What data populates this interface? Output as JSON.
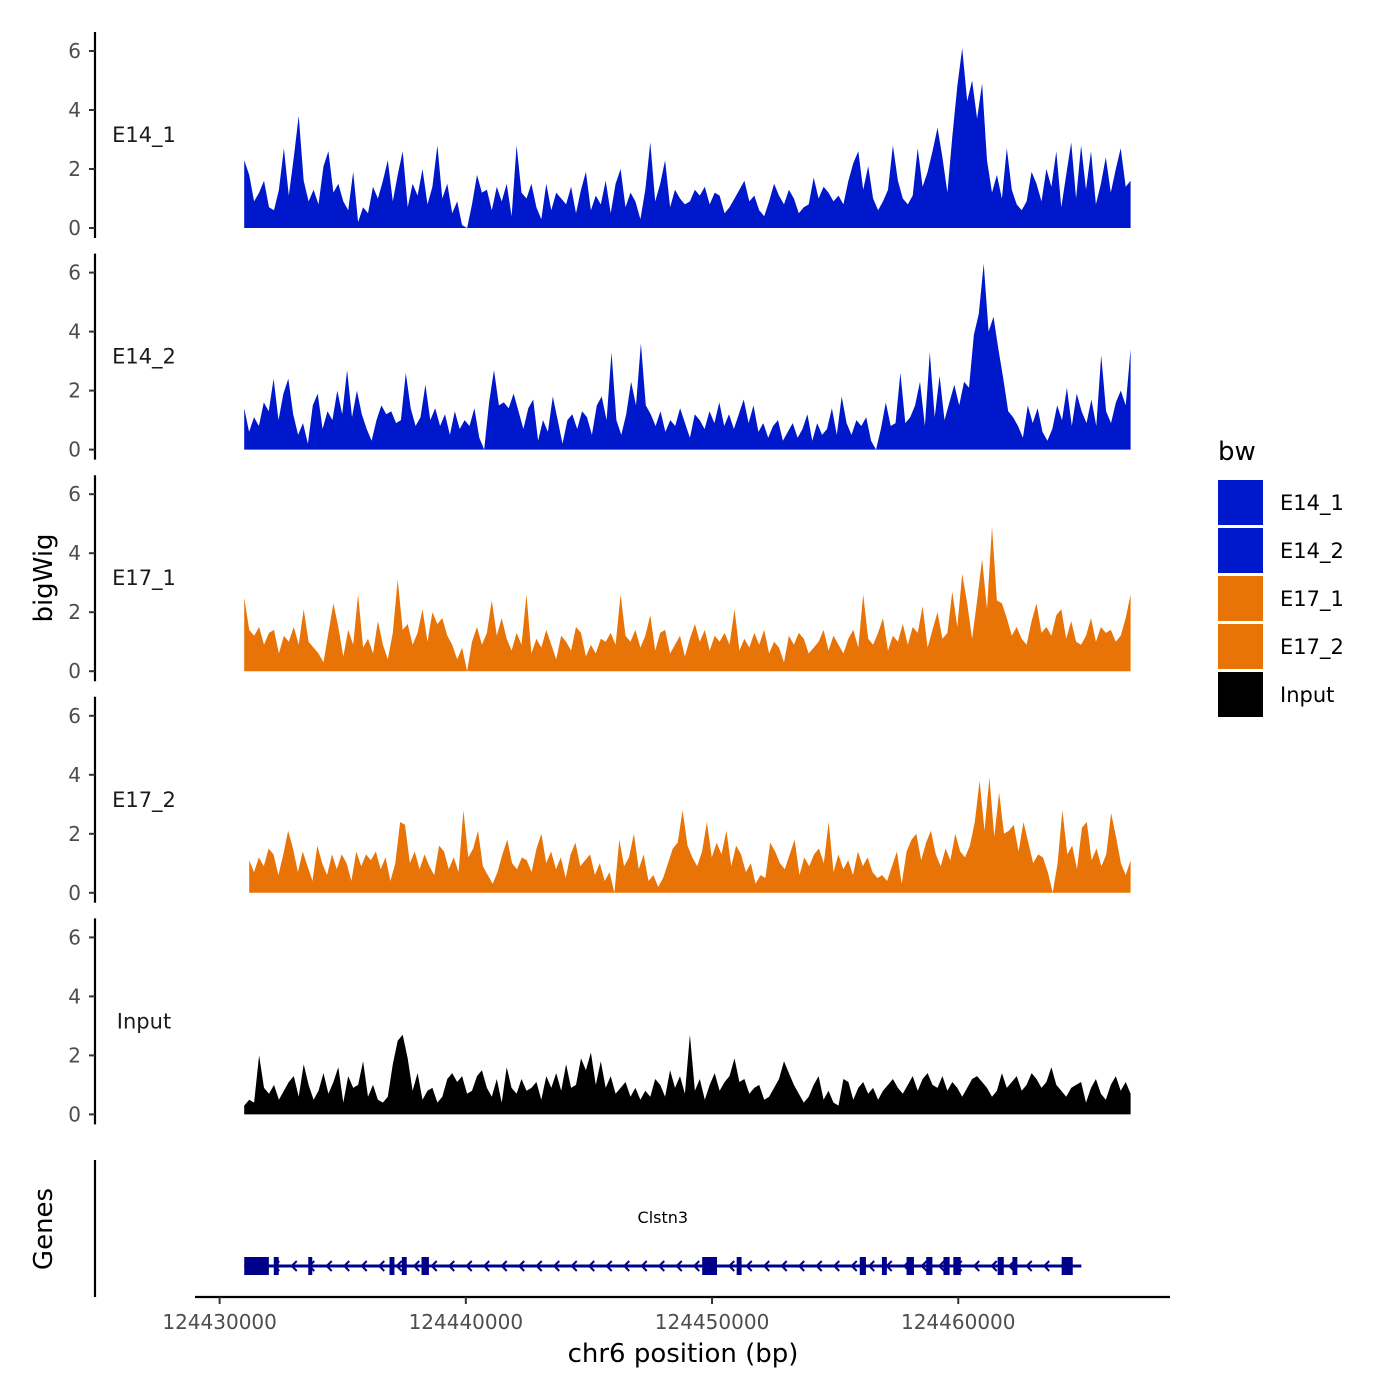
{
  "chart_data": {
    "type": "area",
    "xlabel": "chr6 position (bp)",
    "ylabel": "bigWig",
    "xlim": [
      124429000,
      124467000
    ],
    "ylim": [
      0,
      6.5
    ],
    "x_ticks": [
      "124430000",
      "124440000",
      "124450000",
      "124460000"
    ],
    "x_tick_values": [
      124430000,
      124440000,
      124450000,
      124460000
    ],
    "y_ticks": [
      "0",
      "2",
      "4",
      "6"
    ],
    "y_tick_values": [
      0,
      2,
      4,
      6
    ],
    "series": [
      {
        "name": "E14_1",
        "label": "E14_1",
        "color": "#0018CC",
        "x_start": 124431000,
        "x_end": 124467000,
        "values": [
          2.3,
          1.8,
          0.9,
          1.2,
          1.6,
          0.7,
          0.6,
          1.3,
          2.7,
          1.1,
          2.4,
          3.8,
          1.6,
          0.9,
          1.3,
          0.8,
          2.1,
          2.6,
          1.2,
          1.5,
          0.9,
          0.6,
          1.9,
          0.2,
          0.7,
          0.5,
          1.4,
          1.0,
          1.6,
          2.3,
          0.9,
          1.8,
          2.6,
          0.7,
          1.5,
          1.1,
          2.0,
          0.8,
          1.4,
          2.8,
          1.0,
          1.5,
          0.5,
          0.9,
          0.1,
          0.0,
          0.8,
          1.8,
          1.2,
          1.3,
          0.6,
          1.4,
          0.9,
          1.5,
          0.4,
          2.8,
          1.2,
          1.0,
          1.5,
          0.7,
          0.3,
          1.5,
          0.6,
          1.2,
          1.0,
          0.8,
          1.4,
          0.5,
          1.3,
          1.9,
          0.6,
          1.1,
          0.8,
          1.6,
          0.5,
          1.5,
          2.0,
          0.7,
          1.2,
          0.9,
          0.3,
          1.3,
          2.9,
          0.9,
          1.5,
          2.3,
          0.7,
          1.3,
          1.0,
          0.8,
          0.9,
          1.3,
          1.1,
          1.4,
          0.8,
          1.2,
          1.1,
          0.5,
          0.7,
          1.0,
          1.3,
          1.6,
          0.9,
          1.1,
          0.6,
          0.4,
          0.9,
          1.5,
          1.1,
          0.8,
          1.3,
          1.0,
          0.5,
          0.7,
          0.8,
          1.7,
          1.0,
          1.4,
          1.2,
          0.9,
          1.1,
          0.8,
          1.6,
          2.2,
          2.6,
          1.3,
          2.1,
          1.0,
          0.6,
          0.9,
          1.3,
          2.8,
          1.6,
          1.0,
          0.8,
          1.1,
          2.7,
          1.4,
          1.9,
          2.6,
          3.4,
          2.4,
          1.2,
          3.1,
          4.8,
          6.1,
          4.3,
          5.0,
          3.7,
          4.9,
          2.3,
          1.2,
          1.8,
          1.0,
          2.7,
          1.3,
          0.8,
          0.6,
          0.9,
          1.9,
          1.5,
          0.9,
          2.0,
          1.4,
          2.6,
          0.7,
          1.8,
          2.9,
          1.0,
          2.8,
          1.3,
          2.6,
          0.8,
          1.5,
          2.4,
          1.2,
          2.0,
          2.7,
          1.4,
          1.6
        ]
      },
      {
        "name": "E14_2",
        "label": "E14_2",
        "color": "#0018CC",
        "x_start": 124431000,
        "x_end": 124467000,
        "values": [
          1.4,
          0.6,
          1.1,
          0.8,
          1.6,
          1.3,
          2.4,
          1.0,
          1.9,
          2.4,
          1.2,
          0.5,
          0.9,
          0.2,
          1.5,
          1.9,
          0.7,
          1.3,
          1.0,
          2.0,
          1.2,
          2.7,
          1.1,
          2.0,
          1.2,
          0.7,
          0.3,
          1.0,
          1.5,
          1.2,
          1.3,
          0.9,
          1.0,
          2.6,
          1.4,
          0.8,
          1.1,
          2.2,
          1.0,
          1.4,
          0.8,
          1.2,
          0.5,
          1.3,
          0.7,
          1.0,
          0.8,
          1.4,
          0.4,
          0.0,
          1.6,
          2.7,
          1.5,
          1.6,
          1.4,
          1.9,
          1.3,
          0.7,
          1.4,
          1.7,
          0.3,
          1.0,
          0.6,
          1.8,
          1.0,
          0.2,
          1.0,
          1.2,
          0.7,
          1.3,
          1.1,
          0.5,
          1.5,
          1.8,
          1.0,
          3.3,
          1.0,
          0.5,
          1.2,
          2.3,
          1.5,
          3.6,
          1.5,
          1.2,
          0.8,
          1.3,
          0.6,
          1.0,
          0.8,
          1.4,
          0.9,
          0.4,
          1.2,
          1.0,
          0.7,
          1.3,
          0.9,
          1.6,
          0.8,
          1.2,
          0.7,
          1.2,
          1.7,
          0.9,
          1.5,
          0.6,
          0.9,
          0.4,
          0.8,
          1.0,
          0.3,
          0.6,
          0.9,
          0.4,
          0.7,
          1.2,
          0.3,
          0.9,
          0.5,
          0.7,
          1.4,
          0.5,
          1.8,
          0.9,
          0.5,
          1.0,
          0.8,
          1.1,
          0.3,
          0.0,
          0.7,
          1.6,
          0.8,
          0.9,
          2.6,
          0.9,
          1.1,
          1.5,
          2.3,
          0.8,
          3.3,
          1.1,
          2.5,
          1.0,
          1.6,
          2.2,
          1.5,
          2.3,
          2.1,
          3.9,
          4.6,
          6.3,
          4.0,
          4.5,
          3.4,
          2.4,
          1.3,
          1.1,
          0.8,
          0.4,
          1.5,
          0.9,
          1.4,
          0.6,
          0.3,
          0.7,
          1.5,
          1.0,
          2.1,
          0.8,
          1.9,
          1.3,
          0.9,
          1.7,
          0.8,
          3.2,
          1.3,
          0.9,
          1.6,
          2.0,
          1.5,
          3.4
        ]
      },
      {
        "name": "E17_1",
        "label": "E17_1",
        "color": "#E87306",
        "x_start": 124431000,
        "x_end": 124467000,
        "values": [
          2.5,
          1.4,
          1.2,
          1.5,
          0.9,
          1.3,
          1.4,
          0.6,
          1.2,
          1.0,
          1.5,
          0.9,
          2.1,
          1.0,
          0.8,
          0.6,
          0.3,
          1.3,
          2.3,
          1.5,
          0.5,
          1.4,
          0.9,
          2.6,
          0.8,
          1.1,
          0.6,
          1.7,
          0.9,
          0.4,
          1.3,
          3.1,
          1.4,
          1.6,
          0.9,
          1.3,
          2.1,
          1.0,
          2.0,
          1.6,
          1.8,
          1.2,
          0.9,
          0.4,
          0.8,
          0.0,
          1.0,
          1.5,
          0.9,
          1.3,
          2.4,
          1.2,
          1.8,
          1.1,
          0.7,
          1.3,
          0.9,
          2.6,
          0.6,
          1.1,
          0.8,
          1.4,
          0.9,
          0.4,
          1.2,
          1.0,
          0.7,
          1.5,
          1.3,
          0.5,
          0.9,
          0.6,
          1.1,
          1.0,
          1.3,
          0.9,
          2.6,
          1.2,
          1.0,
          1.4,
          0.8,
          1.2,
          1.9,
          0.7,
          1.3,
          1.4,
          0.6,
          0.9,
          1.2,
          0.5,
          1.1,
          1.6,
          1.0,
          1.4,
          0.7,
          1.2,
          1.0,
          1.3,
          0.9,
          2.1,
          0.7,
          1.1,
          0.8,
          1.3,
          0.9,
          1.4,
          0.6,
          1.0,
          0.8,
          0.3,
          1.2,
          0.9,
          1.3,
          1.1,
          0.6,
          0.8,
          1.0,
          1.4,
          0.7,
          1.2,
          0.9,
          0.6,
          1.1,
          1.4,
          0.8,
          2.6,
          1.1,
          0.9,
          1.3,
          1.8,
          0.7,
          1.2,
          1.0,
          1.6,
          0.9,
          1.5,
          1.3,
          2.2,
          0.8,
          1.4,
          2.0,
          1.1,
          1.3,
          2.7,
          1.5,
          3.3,
          2.3,
          1.1,
          2.4,
          3.8,
          2.1,
          4.9,
          2.4,
          2.3,
          1.8,
          1.2,
          1.5,
          1.1,
          0.9,
          1.7,
          2.3,
          1.3,
          1.5,
          1.2,
          1.9,
          2.1,
          1.1,
          1.7,
          1.0,
          0.9,
          1.2,
          1.8,
          1.0,
          1.5,
          1.3,
          1.4,
          1.0,
          1.2,
          1.8,
          2.6
        ]
      },
      {
        "name": "E17_2",
        "label": "E17_2",
        "color": "#E87306",
        "x_start": 124431200,
        "x_end": 124467000,
        "values": [
          1.1,
          0.7,
          1.2,
          0.9,
          1.5,
          1.3,
          0.6,
          1.3,
          2.1,
          1.5,
          0.7,
          1.4,
          0.9,
          0.4,
          1.6,
          1.0,
          0.6,
          1.3,
          0.8,
          1.3,
          1.0,
          0.4,
          1.4,
          0.9,
          1.3,
          1.1,
          1.4,
          0.8,
          1.2,
          0.4,
          1.0,
          2.4,
          2.3,
          1.0,
          1.4,
          0.8,
          1.3,
          0.9,
          0.6,
          1.6,
          1.4,
          0.8,
          1.2,
          0.7,
          2.8,
          1.2,
          1.5,
          2.1,
          0.9,
          0.6,
          0.3,
          0.7,
          1.3,
          1.8,
          1.0,
          0.8,
          1.2,
          1.1,
          0.7,
          1.5,
          2.0,
          1.0,
          1.4,
          0.8,
          1.2,
          0.5,
          1.3,
          1.7,
          0.9,
          1.1,
          1.3,
          0.6,
          1.0,
          0.4,
          0.7,
          0.0,
          1.8,
          0.9,
          1.2,
          2.0,
          0.8,
          1.3,
          0.4,
          0.6,
          0.2,
          0.5,
          1.0,
          1.5,
          1.7,
          2.8,
          1.6,
          1.2,
          0.9,
          1.4,
          2.4,
          1.2,
          1.7,
          1.3,
          2.1,
          0.9,
          1.6,
          1.3,
          0.7,
          1.0,
          0.3,
          0.6,
          0.5,
          1.7,
          1.4,
          1.0,
          0.8,
          1.3,
          1.8,
          0.6,
          1.2,
          0.9,
          1.3,
          1.5,
          1.0,
          2.4,
          0.7,
          1.3,
          0.8,
          1.1,
          0.6,
          1.4,
          0.9,
          1.2,
          0.7,
          0.5,
          0.6,
          0.4,
          0.9,
          1.4,
          0.3,
          1.4,
          1.8,
          2.0,
          1.1,
          1.7,
          2.1,
          1.3,
          0.9,
          1.5,
          1.1,
          2.0,
          1.4,
          1.2,
          1.6,
          2.4,
          3.8,
          2.1,
          3.9,
          1.9,
          3.4,
          2.0,
          2.1,
          2.3,
          1.4,
          2.4,
          1.7,
          1.0,
          1.3,
          1.2,
          0.7,
          0.0,
          1.0,
          2.8,
          1.3,
          1.6,
          0.8,
          2.2,
          2.4,
          1.1,
          1.5,
          0.9,
          1.3,
          2.7,
          1.9,
          1.0,
          0.6,
          1.1
        ]
      },
      {
        "name": "Input",
        "label": "Input",
        "color": "#000000",
        "x_start": 124431000,
        "x_end": 124467000,
        "values": [
          0.3,
          0.5,
          0.4,
          2.0,
          0.9,
          0.7,
          1.0,
          0.5,
          0.8,
          1.1,
          1.3,
          0.6,
          1.7,
          1.0,
          0.5,
          0.8,
          1.4,
          0.7,
          1.1,
          1.6,
          0.4,
          1.3,
          0.9,
          1.0,
          1.8,
          0.6,
          1.0,
          0.5,
          0.4,
          0.6,
          1.7,
          2.5,
          2.7,
          1.9,
          0.8,
          1.4,
          0.5,
          0.8,
          0.9,
          0.4,
          0.6,
          1.2,
          1.4,
          1.1,
          1.3,
          0.7,
          0.8,
          1.3,
          1.5,
          0.9,
          0.6,
          1.2,
          0.4,
          1.6,
          0.9,
          0.7,
          1.2,
          0.8,
          0.9,
          1.1,
          0.5,
          1.3,
          0.9,
          1.4,
          0.8,
          1.7,
          0.9,
          1.0,
          1.9,
          1.5,
          2.1,
          1.0,
          1.8,
          0.9,
          1.3,
          0.7,
          0.9,
          1.1,
          0.6,
          0.9,
          0.5,
          0.8,
          0.6,
          1.2,
          1.0,
          0.6,
          1.5,
          0.9,
          1.3,
          0.7,
          2.7,
          0.8,
          1.2,
          0.5,
          1.0,
          1.4,
          0.8,
          1.1,
          1.3,
          1.9,
          1.1,
          1.2,
          0.7,
          0.9,
          1.0,
          0.5,
          0.6,
          0.9,
          1.2,
          1.8,
          1.4,
          1.0,
          0.7,
          0.4,
          0.6,
          1.0,
          1.3,
          0.5,
          0.8,
          0.4,
          0.3,
          1.2,
          1.1,
          0.5,
          0.9,
          1.1,
          0.7,
          0.9,
          0.5,
          0.8,
          1.0,
          1.2,
          0.9,
          0.7,
          1.0,
          1.3,
          0.8,
          1.2,
          1.4,
          1.0,
          0.9,
          1.3,
          0.8,
          1.1,
          0.9,
          0.6,
          0.9,
          1.2,
          1.3,
          1.1,
          0.9,
          0.6,
          0.8,
          1.4,
          0.9,
          1.1,
          1.3,
          0.8,
          1.0,
          1.4,
          1.2,
          0.9,
          1.1,
          1.6,
          1.0,
          0.8,
          0.6,
          0.9,
          1.0,
          1.1,
          0.4,
          0.9,
          1.2,
          0.7,
          0.5,
          1.0,
          1.3,
          0.8,
          1.1,
          0.7
        ]
      }
    ],
    "gene_track": {
      "title": "Genes",
      "gene_name": "Clstn3",
      "color": "#00008B",
      "strand": "-",
      "start": 124431000,
      "end": 124465000,
      "exons": [
        [
          124431000,
          124432000
        ],
        [
          124432200,
          124432400
        ],
        [
          124433600,
          124433750
        ],
        [
          124436900,
          124437100
        ],
        [
          124437400,
          124437600
        ],
        [
          124438200,
          124438500
        ],
        [
          124449600,
          124450200
        ],
        [
          124451000,
          124451200
        ],
        [
          124456000,
          124456250
        ],
        [
          124456900,
          124457100
        ],
        [
          124457900,
          124458200
        ],
        [
          124458700,
          124458950
        ],
        [
          124459400,
          124459650
        ],
        [
          124459800,
          124460100
        ],
        [
          124461600,
          124461850
        ],
        [
          124462200,
          124462400
        ],
        [
          124464200,
          124464650
        ]
      ]
    },
    "legend": {
      "title": "bw",
      "position": "right",
      "entries": [
        {
          "label": "E14_1",
          "color": "#0018CC"
        },
        {
          "label": "E14_2",
          "color": "#0018CC"
        },
        {
          "label": "E17_1",
          "color": "#E87306"
        },
        {
          "label": "E17_2",
          "color": "#E87306"
        },
        {
          "label": "Input",
          "color": "#000000"
        }
      ]
    }
  }
}
